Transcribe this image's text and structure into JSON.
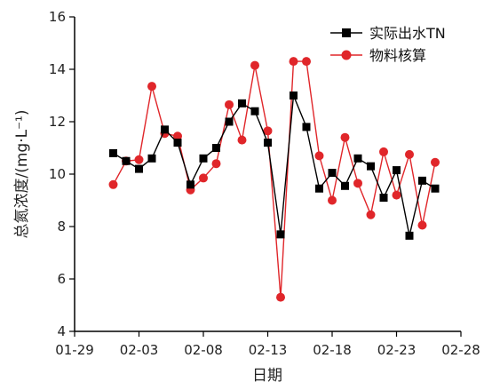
{
  "chart_data": {
    "type": "line",
    "xlabel": "日期",
    "ylabel": "总氮浓度/(mg·L⁻¹)",
    "ylim": [
      4,
      16
    ],
    "yticks": [
      "4",
      "6",
      "8",
      "10",
      "12",
      "14",
      "16"
    ],
    "xlim": [
      "01-29",
      "02-28"
    ],
    "xticks": [
      "01-29",
      "02-03",
      "02-08",
      "02-13",
      "02-18",
      "02-23",
      "02-28"
    ],
    "grid": false,
    "legend_position": "top-right",
    "series": [
      {
        "name": "实际出水TN",
        "color": "#000000",
        "marker": "square",
        "x": [
          "02-01",
          "02-02",
          "02-03",
          "02-04",
          "02-05",
          "02-06",
          "02-07",
          "02-08",
          "02-09",
          "02-10",
          "02-11",
          "02-12",
          "02-13",
          "02-14",
          "02-15",
          "02-16",
          "02-17",
          "02-18",
          "02-19",
          "02-20",
          "02-21",
          "02-22",
          "02-23",
          "02-24",
          "02-25",
          "02-26",
          "02-27"
        ],
        "values": [
          10.8,
          10.5,
          10.2,
          10.6,
          11.7,
          11.2,
          9.6,
          10.6,
          11.0,
          12.0,
          12.7,
          12.4,
          11.2,
          7.7,
          13.0,
          11.8,
          9.45,
          10.05,
          9.55,
          10.6,
          10.3,
          9.1,
          10.15,
          7.65,
          9.75,
          9.45,
          null
        ]
      },
      {
        "name": "物料核算",
        "color": "#e0262a",
        "marker": "circle",
        "x": [
          "02-01",
          "02-02",
          "02-03",
          "02-04",
          "02-05",
          "02-06",
          "02-07",
          "02-08",
          "02-09",
          "02-10",
          "02-11",
          "02-12",
          "02-13",
          "02-14",
          "02-15",
          "02-16",
          "02-17",
          "02-18",
          "02-19",
          "02-20",
          "02-21",
          "02-22",
          "02-23",
          "02-24",
          "02-25",
          "02-26"
        ],
        "values": [
          9.6,
          10.5,
          10.55,
          13.35,
          11.55,
          11.45,
          9.4,
          9.85,
          10.4,
          12.65,
          11.3,
          14.15,
          11.65,
          5.3,
          14.3,
          14.3,
          10.7,
          9.0,
          11.4,
          9.65,
          8.45,
          10.85,
          9.2,
          10.75,
          8.05,
          10.45
        ]
      }
    ]
  }
}
